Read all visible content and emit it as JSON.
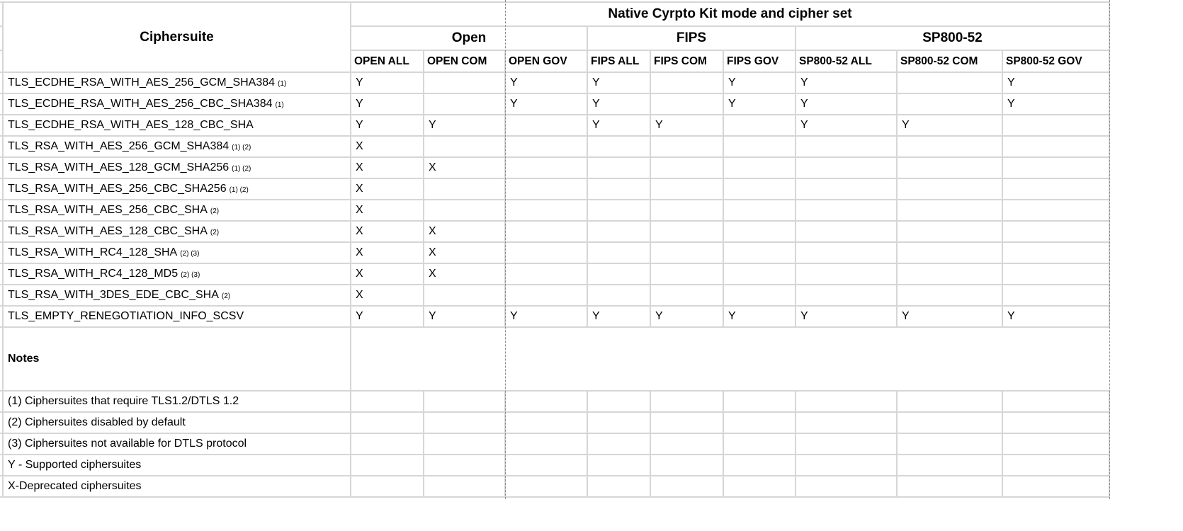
{
  "header": {
    "ciphersuite": "Ciphersuite",
    "group_title": "Native Cyrpto Kit mode and cipher set",
    "modes": [
      "Open",
      "FIPS",
      "SP800-52"
    ],
    "columns": [
      "OPEN ALL",
      "OPEN COM",
      "OPEN GOV",
      "FIPS ALL",
      "FIPS COM",
      "FIPS GOV",
      "SP800-52 ALL",
      "SP800-52 COM",
      "SP800-52 GOV"
    ]
  },
  "rows": [
    {
      "name": "TLS_ECDHE_RSA_WITH_AES_256_GCM_SHA384",
      "note": "(1)",
      "values": [
        "Y",
        "",
        "Y",
        "Y",
        "",
        "Y",
        "Y",
        "",
        "Y"
      ]
    },
    {
      "name": "TLS_ECDHE_RSA_WITH_AES_256_CBC_SHA384",
      "note": "(1)",
      "values": [
        "Y",
        "",
        "Y",
        "Y",
        "",
        "Y",
        "Y",
        "",
        "Y"
      ]
    },
    {
      "name": "TLS_ECDHE_RSA_WITH_AES_128_CBC_SHA",
      "note": "",
      "values": [
        "Y",
        "Y",
        "",
        "Y",
        "Y",
        "",
        "Y",
        "Y",
        ""
      ]
    },
    {
      "name": "TLS_RSA_WITH_AES_256_GCM_SHA384",
      "note": "(1) (2)",
      "values": [
        "X",
        "",
        "",
        "",
        "",
        "",
        "",
        "",
        ""
      ]
    },
    {
      "name": "TLS_RSA_WITH_AES_128_GCM_SHA256",
      "note": "(1) (2)",
      "values": [
        "X",
        "X",
        "",
        "",
        "",
        "",
        "",
        "",
        ""
      ]
    },
    {
      "name": "TLS_RSA_WITH_AES_256_CBC_SHA256",
      "note": "(1) (2)",
      "values": [
        "X",
        "",
        "",
        "",
        "",
        "",
        "",
        "",
        ""
      ]
    },
    {
      "name": "TLS_RSA_WITH_AES_256_CBC_SHA",
      "note": "(2)",
      "values": [
        "X",
        "",
        "",
        "",
        "",
        "",
        "",
        "",
        ""
      ]
    },
    {
      "name": "TLS_RSA_WITH_AES_128_CBC_SHA",
      "note": "(2)",
      "values": [
        "X",
        "X",
        "",
        "",
        "",
        "",
        "",
        "",
        ""
      ]
    },
    {
      "name": "TLS_RSA_WITH_RC4_128_SHA",
      "note": "(2) (3)",
      "values": [
        "X",
        "X",
        "",
        "",
        "",
        "",
        "",
        "",
        ""
      ]
    },
    {
      "name": "TLS_RSA_WITH_RC4_128_MD5",
      "note": "(2) (3)",
      "values": [
        "X",
        "X",
        "",
        "",
        "",
        "",
        "",
        "",
        ""
      ]
    },
    {
      "name": "TLS_RSA_WITH_3DES_EDE_CBC_SHA",
      "note": "(2)",
      "values": [
        "X",
        "",
        "",
        "",
        "",
        "",
        "",
        "",
        ""
      ]
    },
    {
      "name": "TLS_EMPTY_RENEGOTIATION_INFO_SCSV",
      "note": "",
      "values": [
        "Y",
        "Y",
        "Y",
        "Y",
        "Y",
        "Y",
        "Y",
        "Y",
        "Y"
      ]
    }
  ],
  "notes": {
    "title": "Notes",
    "items": [
      "(1) Ciphersuites that require TLS1.2/DTLS 1.2",
      "(2) Ciphersuites disabled by default",
      "(3) Ciphersuites not available for DTLS protocol",
      "Y - Supported ciphersuites",
      "X-Deprecated ciphersuites"
    ]
  }
}
